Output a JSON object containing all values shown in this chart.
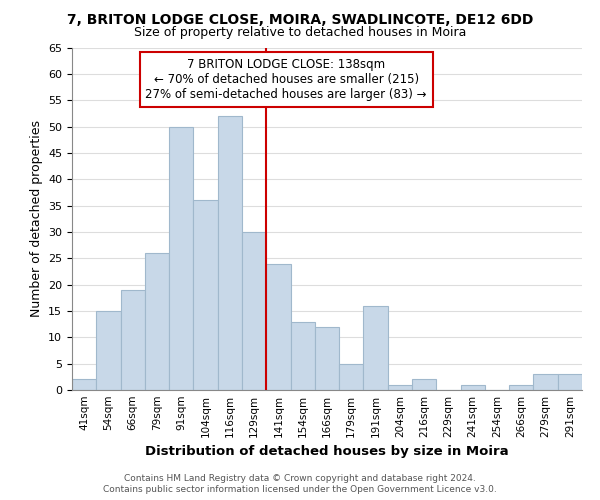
{
  "title": "7, BRITON LODGE CLOSE, MOIRA, SWADLINCOTE, DE12 6DD",
  "subtitle": "Size of property relative to detached houses in Moira",
  "xlabel": "Distribution of detached houses by size in Moira",
  "ylabel": "Number of detached properties",
  "categories": [
    "41sqm",
    "54sqm",
    "66sqm",
    "79sqm",
    "91sqm",
    "104sqm",
    "116sqm",
    "129sqm",
    "141sqm",
    "154sqm",
    "166sqm",
    "179sqm",
    "191sqm",
    "204sqm",
    "216sqm",
    "229sqm",
    "241sqm",
    "254sqm",
    "266sqm",
    "279sqm",
    "291sqm"
  ],
  "values": [
    2,
    15,
    19,
    26,
    50,
    36,
    52,
    30,
    24,
    13,
    12,
    5,
    16,
    1,
    2,
    0,
    1,
    0,
    1,
    3,
    3
  ],
  "bar_color": "#c8d8e8",
  "bar_edge_color": "#a0b8cc",
  "vline_color": "#cc0000",
  "annotation_title": "7 BRITON LODGE CLOSE: 138sqm",
  "annotation_line1": "← 70% of detached houses are smaller (215)",
  "annotation_line2": "27% of semi-detached houses are larger (83) →",
  "annotation_box_color": "#ffffff",
  "annotation_box_edge": "#cc0000",
  "ylim": [
    0,
    65
  ],
  "yticks": [
    0,
    5,
    10,
    15,
    20,
    25,
    30,
    35,
    40,
    45,
    50,
    55,
    60,
    65
  ],
  "background_color": "#ffffff",
  "grid_color": "#dddddd",
  "footer_line1": "Contains HM Land Registry data © Crown copyright and database right 2024.",
  "footer_line2": "Contains public sector information licensed under the Open Government Licence v3.0."
}
